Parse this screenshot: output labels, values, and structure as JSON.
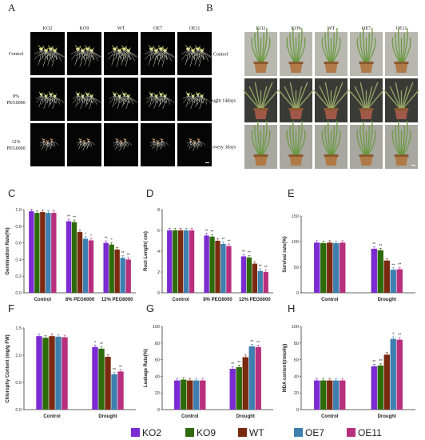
{
  "legend": {
    "items": [
      {
        "name": "KO2",
        "color": "#7B2BD1"
      },
      {
        "name": "KO9",
        "color": "#2E6B0A"
      },
      {
        "name": "WT",
        "color": "#7A2A10"
      },
      {
        "name": "OE7",
        "color": "#3E7FB0"
      },
      {
        "name": "OE11",
        "color": "#B8307D"
      }
    ]
  },
  "panels": {
    "A": {
      "label": "A",
      "columns": [
        "KO2",
        "KO9",
        "WT",
        "OE7",
        "OE11"
      ],
      "rows": [
        {
          "lines": [
            "Control"
          ]
        },
        {
          "lines": [
            "8%",
            "PEG6000"
          ]
        },
        {
          "lines": [
            "12%",
            "PEG6000"
          ]
        }
      ]
    },
    "B": {
      "label": "B",
      "columns": [
        "KO2",
        "KO9",
        "WT",
        "OE7",
        "OE11"
      ],
      "rows": [
        {
          "lines": [
            "Control"
          ]
        },
        {
          "lines": [
            "Drought 14days"
          ]
        },
        {
          "lines": [
            "Recovery 3days"
          ]
        }
      ]
    }
  },
  "chart_data": [
    {
      "panel": "C",
      "type": "bar",
      "ylabel": "Germination Rate(%)",
      "ylim": [
        0,
        1.0
      ],
      "yticks": [
        0.0,
        0.2,
        0.4,
        0.6,
        0.8,
        1.0
      ],
      "categories": [
        "Control",
        "8% PEG6000",
        "12% PEG6000"
      ],
      "series": [
        {
          "name": "KO2",
          "values": [
            0.98,
            0.86,
            0.6
          ]
        },
        {
          "name": "KO9",
          "values": [
            0.96,
            0.85,
            0.58
          ]
        },
        {
          "name": "WT",
          "values": [
            0.97,
            0.73,
            0.52
          ]
        },
        {
          "name": "OE7",
          "values": [
            0.96,
            0.65,
            0.42
          ]
        },
        {
          "name": "OE11",
          "values": [
            0.96,
            0.63,
            0.4
          ]
        }
      ],
      "stars": [
        [
          "",
          "",
          "",
          "",
          ""
        ],
        [
          "**",
          "**",
          "",
          "*",
          "*"
        ],
        [
          "**",
          "*",
          "",
          "**",
          "**"
        ]
      ]
    },
    {
      "panel": "D",
      "type": "bar",
      "ylabel": "Root Length( cm)",
      "ylim": [
        0,
        8
      ],
      "yticks": [
        0,
        2,
        4,
        6,
        8
      ],
      "categories": [
        "Control",
        "8% PEG6000",
        "12% PEG6000"
      ],
      "series": [
        {
          "name": "KO2",
          "values": [
            6.0,
            5.5,
            3.5
          ]
        },
        {
          "name": "KO9",
          "values": [
            6.0,
            5.4,
            3.4
          ]
        },
        {
          "name": "WT",
          "values": [
            6.0,
            5.0,
            2.8
          ]
        },
        {
          "name": "OE7",
          "values": [
            6.0,
            4.7,
            2.1
          ]
        },
        {
          "name": "OE11",
          "values": [
            6.0,
            4.5,
            2.0
          ]
        }
      ],
      "stars": [
        [
          "",
          "",
          "",
          "",
          ""
        ],
        [
          "**",
          "**",
          "",
          "**",
          "**"
        ],
        [
          "**",
          "**",
          "",
          "**",
          "**"
        ]
      ]
    },
    {
      "panel": "E",
      "type": "bar",
      "ylabel": "Survival rate(%)",
      "ylim": [
        0,
        150
      ],
      "yticks": [
        0,
        50,
        100,
        150
      ],
      "categories": [
        "Control",
        "Drought"
      ],
      "series": [
        {
          "name": "KO2",
          "values": [
            98,
            86
          ]
        },
        {
          "name": "KO9",
          "values": [
            97,
            83
          ]
        },
        {
          "name": "WT",
          "values": [
            98,
            63
          ]
        },
        {
          "name": "OE7",
          "values": [
            97,
            45
          ]
        },
        {
          "name": "OE11",
          "values": [
            98,
            46
          ]
        }
      ],
      "stars": [
        [
          "",
          "",
          "",
          "",
          ""
        ],
        [
          "**",
          "**",
          "",
          "**",
          "**"
        ]
      ]
    },
    {
      "panel": "F",
      "type": "bar",
      "ylabel": "Chlorophy Content (mg/g FW)",
      "ylim": [
        0,
        1.5
      ],
      "yticks": [
        0.0,
        0.5,
        1.0,
        1.5
      ],
      "categories": [
        "Control",
        "Drought"
      ],
      "series": [
        {
          "name": "KO2",
          "values": [
            1.35,
            1.15
          ]
        },
        {
          "name": "KO9",
          "values": [
            1.32,
            1.12
          ]
        },
        {
          "name": "WT",
          "values": [
            1.35,
            0.97
          ]
        },
        {
          "name": "OE7",
          "values": [
            1.34,
            0.65
          ]
        },
        {
          "name": "OE11",
          "values": [
            1.33,
            0.7
          ]
        }
      ],
      "stars": [
        [
          "",
          "",
          "",
          "",
          ""
        ],
        [
          "*",
          "**",
          "",
          "**",
          "**"
        ]
      ]
    },
    {
      "panel": "G",
      "type": "bar",
      "ylabel": "Leakage Rate(%)",
      "ylim": [
        0,
        100
      ],
      "yticks": [
        0,
        20,
        40,
        60,
        80,
        100
      ],
      "categories": [
        "Control",
        "Drought"
      ],
      "series": [
        {
          "name": "KO2",
          "values": [
            35,
            49
          ]
        },
        {
          "name": "KO9",
          "values": [
            36,
            51
          ]
        },
        {
          "name": "WT",
          "values": [
            35,
            63
          ]
        },
        {
          "name": "OE7",
          "values": [
            35,
            76
          ]
        },
        {
          "name": "OE11",
          "values": [
            35,
            75
          ]
        }
      ],
      "stars": [
        [
          "",
          "",
          "",
          "",
          ""
        ],
        [
          "**",
          "**",
          "",
          "**",
          "**"
        ]
      ]
    },
    {
      "panel": "H",
      "type": "bar",
      "ylabel": "MDA content(nmol/g)",
      "ylim": [
        0,
        100
      ],
      "yticks": [
        0,
        20,
        40,
        60,
        80,
        100
      ],
      "categories": [
        "Control",
        "Drought"
      ],
      "series": [
        {
          "name": "KO2",
          "values": [
            35,
            52
          ]
        },
        {
          "name": "KO9",
          "values": [
            35,
            53
          ]
        },
        {
          "name": "WT",
          "values": [
            35,
            66
          ]
        },
        {
          "name": "OE7",
          "values": [
            35,
            85
          ]
        },
        {
          "name": "OE11",
          "values": [
            35,
            84
          ]
        }
      ],
      "stars": [
        [
          "",
          "",
          "",
          "",
          ""
        ],
        [
          "**",
          "**",
          "",
          "*",
          "**"
        ]
      ]
    }
  ]
}
